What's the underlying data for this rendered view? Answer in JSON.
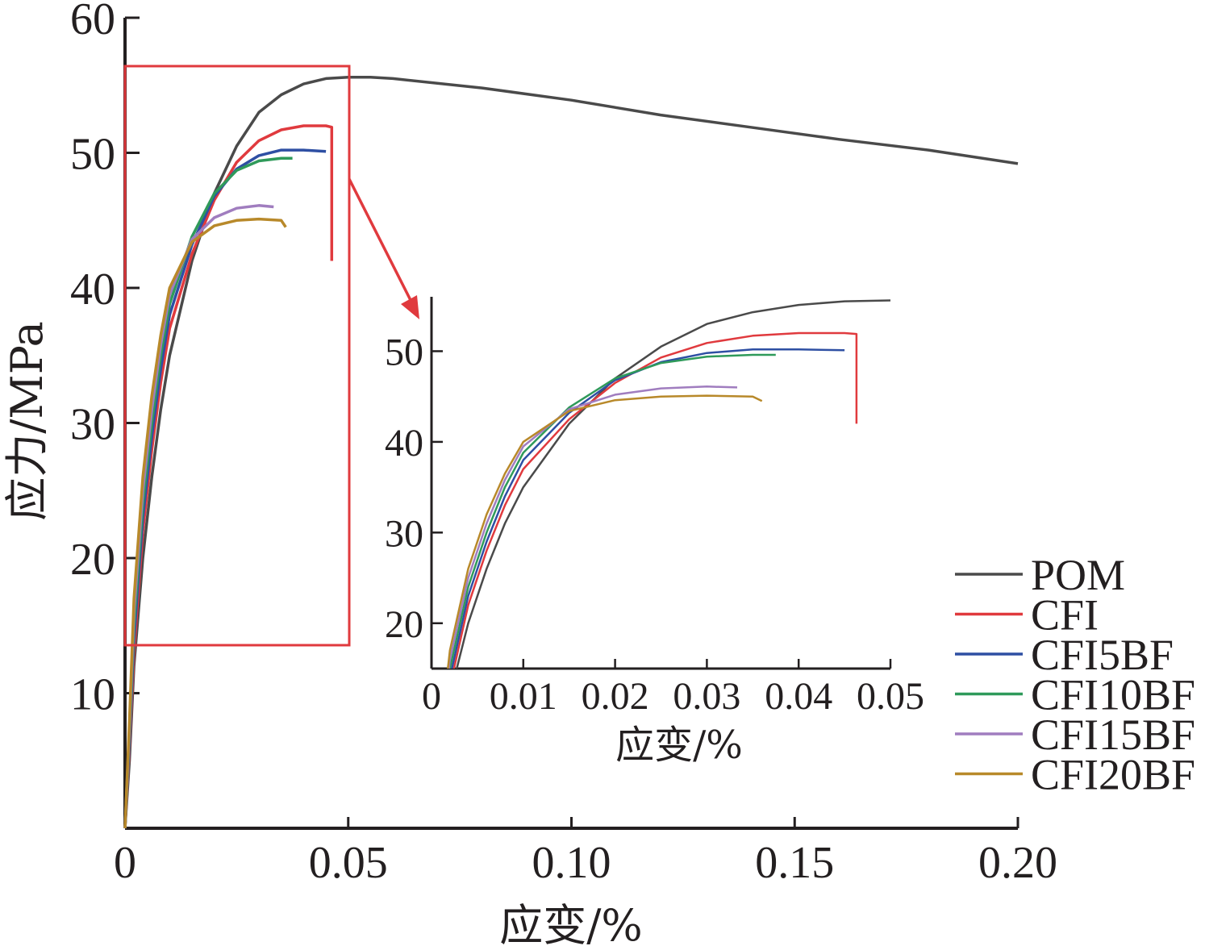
{
  "chart_data": [
    {
      "type": "line",
      "xlabel": "应变/%",
      "ylabel": "应力/MPa",
      "xlim": [
        0,
        0.2
      ],
      "ylim": [
        0,
        60
      ],
      "x_ticks": [
        "0",
        "0.05",
        "0.10",
        "0.15",
        "0.20"
      ],
      "y_ticks": [
        "10",
        "20",
        "30",
        "40",
        "50",
        "60"
      ],
      "legend_position": "bottom-right",
      "series": [
        {
          "name": "POM",
          "color": "#4a4a4a",
          "points": [
            [
              0,
              0
            ],
            [
              0.001,
              5
            ],
            [
              0.002,
              12
            ],
            [
              0.004,
              20
            ],
            [
              0.006,
              26
            ],
            [
              0.008,
              31
            ],
            [
              0.01,
              35
            ],
            [
              0.015,
              42
            ],
            [
              0.02,
              47
            ],
            [
              0.025,
              50.5
            ],
            [
              0.03,
              53
            ],
            [
              0.035,
              54.3
            ],
            [
              0.04,
              55.1
            ],
            [
              0.045,
              55.5
            ],
            [
              0.05,
              55.6
            ],
            [
              0.055,
              55.6
            ],
            [
              0.06,
              55.5
            ],
            [
              0.08,
              54.8
            ],
            [
              0.1,
              53.9
            ],
            [
              0.12,
              52.8
            ],
            [
              0.14,
              51.9
            ],
            [
              0.16,
              51
            ],
            [
              0.18,
              50.2
            ],
            [
              0.2,
              49.2
            ]
          ]
        },
        {
          "name": "CFI",
          "color": "#e03a3e",
          "points": [
            [
              0,
              0
            ],
            [
              0.001,
              6
            ],
            [
              0.002,
              13
            ],
            [
              0.004,
              22
            ],
            [
              0.006,
              28
            ],
            [
              0.008,
              33
            ],
            [
              0.01,
              37
            ],
            [
              0.015,
              42.5
            ],
            [
              0.02,
              46.5
            ],
            [
              0.025,
              49.3
            ],
            [
              0.03,
              50.9
            ],
            [
              0.035,
              51.7
            ],
            [
              0.04,
              52
            ],
            [
              0.045,
              52
            ],
            [
              0.0463,
              51.9
            ],
            [
              0.0463,
              42
            ]
          ]
        },
        {
          "name": "CFI5BF",
          "color": "#2e4fa3",
          "points": [
            [
              0,
              0
            ],
            [
              0.001,
              6.5
            ],
            [
              0.002,
              14
            ],
            [
              0.004,
              23
            ],
            [
              0.006,
              29
            ],
            [
              0.008,
              34
            ],
            [
              0.01,
              38
            ],
            [
              0.015,
              43.2
            ],
            [
              0.02,
              46.8
            ],
            [
              0.025,
              48.8
            ],
            [
              0.03,
              49.8
            ],
            [
              0.035,
              50.2
            ],
            [
              0.04,
              50.2
            ],
            [
              0.045,
              50.1
            ]
          ]
        },
        {
          "name": "CFI10BF",
          "color": "#2f9a5a",
          "points": [
            [
              0,
              0
            ],
            [
              0.001,
              7
            ],
            [
              0.002,
              15
            ],
            [
              0.004,
              24
            ],
            [
              0.006,
              30
            ],
            [
              0.008,
              35
            ],
            [
              0.01,
              38.8
            ],
            [
              0.015,
              43.8
            ],
            [
              0.02,
              47
            ],
            [
              0.025,
              48.7
            ],
            [
              0.03,
              49.4
            ],
            [
              0.035,
              49.6
            ],
            [
              0.0375,
              49.6
            ]
          ]
        },
        {
          "name": "CFI15BF",
          "color": "#a07dbf",
          "points": [
            [
              0,
              0
            ],
            [
              0.001,
              7.5
            ],
            [
              0.002,
              16
            ],
            [
              0.004,
              25
            ],
            [
              0.006,
              31
            ],
            [
              0.008,
              35.8
            ],
            [
              0.01,
              39.5
            ],
            [
              0.015,
              43.6
            ],
            [
              0.02,
              45.2
            ],
            [
              0.025,
              45.9
            ],
            [
              0.03,
              46.1
            ],
            [
              0.0333,
              46
            ]
          ]
        },
        {
          "name": "CFI20BF",
          "color": "#b8892a",
          "points": [
            [
              0,
              0
            ],
            [
              0.001,
              8
            ],
            [
              0.002,
              17
            ],
            [
              0.004,
              26
            ],
            [
              0.006,
              32
            ],
            [
              0.008,
              36.5
            ],
            [
              0.01,
              40
            ],
            [
              0.015,
              43.4
            ],
            [
              0.02,
              44.6
            ],
            [
              0.025,
              45
            ],
            [
              0.03,
              45.1
            ],
            [
              0.035,
              45
            ],
            [
              0.036,
              44.5
            ]
          ]
        }
      ]
    },
    {
      "type": "line",
      "xlabel": "应变/%",
      "ylabel": "",
      "xlim": [
        0,
        0.05
      ],
      "ylim": [
        15,
        56
      ],
      "x_ticks": [
        "0",
        "0.01",
        "0.02",
        "0.03",
        "0.04",
        "0.05"
      ],
      "y_ticks": [
        "20",
        "30",
        "40",
        "50"
      ]
    }
  ],
  "zoom_box_color": "#e03a3e"
}
